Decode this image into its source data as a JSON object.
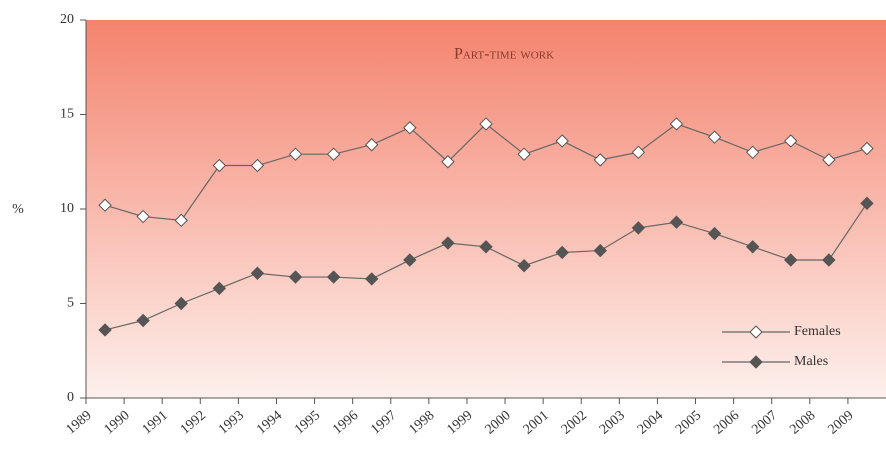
{
  "chart_data": {
    "type": "line",
    "title": "Part-time work",
    "y_label": "%",
    "categories": [
      "1989",
      "1990",
      "1991",
      "1992",
      "1993",
      "1994",
      "1995",
      "1996",
      "1997",
      "1998",
      "1999",
      "2000",
      "2001",
      "2002",
      "2003",
      "2004",
      "2005",
      "2006",
      "2007",
      "2008",
      "2009"
    ],
    "series": [
      {
        "name": "Females",
        "color": "#ffffff",
        "values": [
          10.2,
          9.6,
          9.4,
          12.3,
          12.3,
          12.9,
          12.9,
          13.4,
          14.3,
          12.5,
          14.5,
          12.9,
          13.6,
          12.6,
          13.0,
          14.5,
          13.8,
          13.0,
          13.6,
          12.6,
          13.2
        ]
      },
      {
        "name": "Males",
        "color": "#555555",
        "values": [
          3.6,
          4.1,
          5.0,
          5.8,
          6.6,
          6.4,
          6.4,
          6.3,
          7.3,
          8.2,
          8.0,
          7.0,
          7.7,
          7.8,
          9.0,
          9.3,
          8.7,
          8.0,
          7.3,
          7.3,
          10.3
        ]
      }
    ],
    "ylim": [
      0,
      20
    ],
    "yticks": [
      0,
      5,
      10,
      15,
      20
    ],
    "legend": "lower right"
  }
}
